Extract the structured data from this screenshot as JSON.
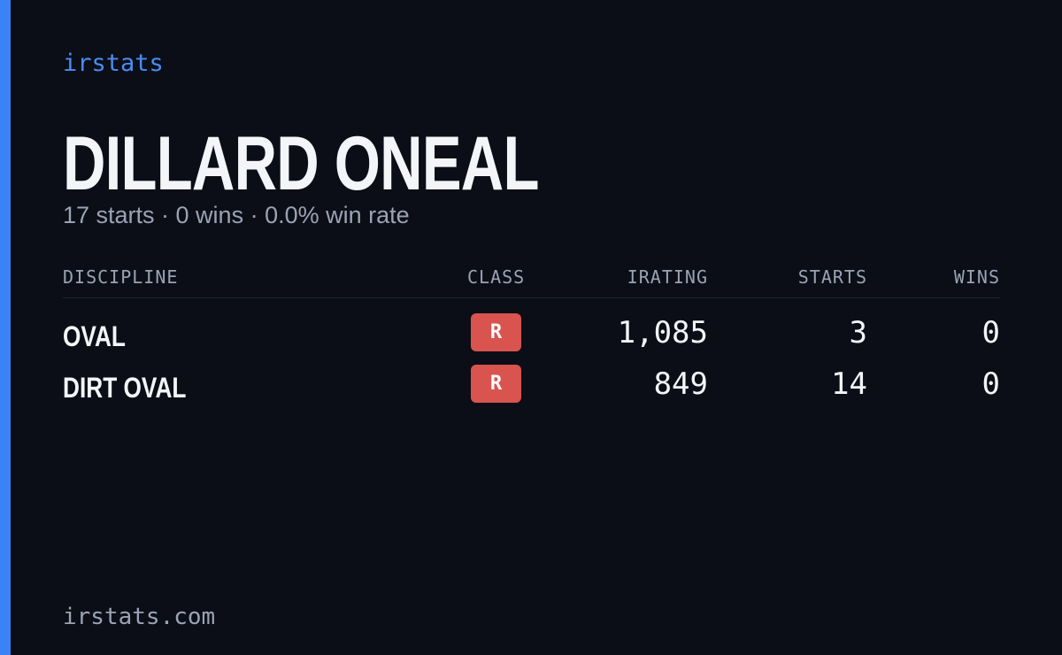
{
  "brand": "irstats",
  "driver": {
    "name": "DILLARD ONEAL",
    "summary": "17 starts · 0 wins · 0.0% win rate"
  },
  "table": {
    "headers": [
      "DISCIPLINE",
      "CLASS",
      "IRATING",
      "STARTS",
      "WINS"
    ],
    "rows": [
      [
        "OVAL",
        "R",
        "1,085",
        "3",
        "0"
      ],
      [
        "DIRT OVAL",
        "R",
        "849",
        "14",
        "0"
      ]
    ]
  },
  "footer": "irstats.com"
}
